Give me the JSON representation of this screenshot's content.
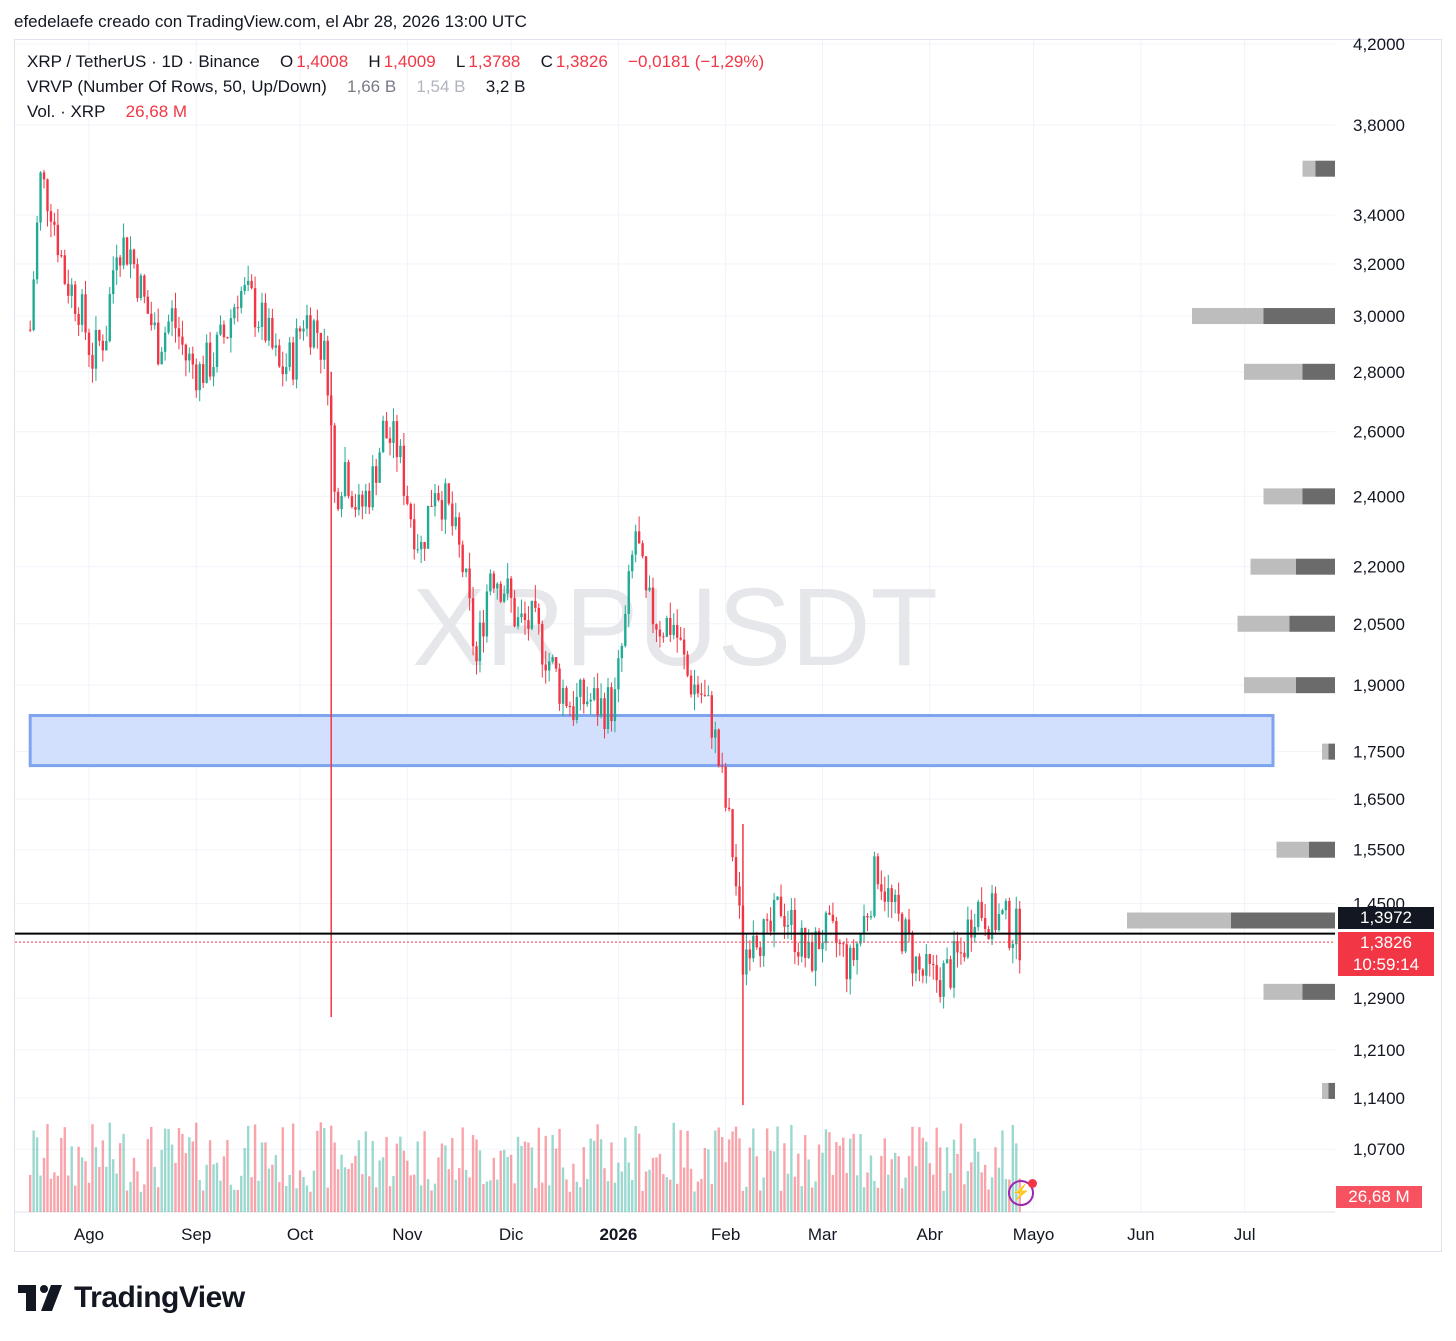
{
  "caption": "efedelaefe creado con TradingView.com, el Abr 28, 2026 13:00 UTC",
  "legend": {
    "symbol": "XRP / TetherUS · 1D · Binance",
    "o_label": "O",
    "o_value": "1,4008",
    "h_label": "H",
    "h_value": "1,4009",
    "l_label": "L",
    "l_value": "1,3788",
    "c_label": "C",
    "c_value": "1,3826",
    "change": "−0,0181 (−1,29%)",
    "vrvp_label": "VRVP (Number Of Rows, 50, Up/Down)",
    "vrvp_up": "1,66 B",
    "vrvp_down": "1,54 B",
    "vrvp_total": "3,2 B",
    "vol_label": "Vol. · XRP",
    "vol_value": "26,68 M"
  },
  "watermark": "XRPUSDT",
  "price_tags": {
    "poc": "1,3972",
    "last": "1,3826",
    "countdown": "10:59:14",
    "volume": "26,68 M"
  },
  "footer": {
    "brand": "TradingView"
  },
  "colors": {
    "up": "#22ab94",
    "down": "#f23645",
    "zone_fill": "#d2e0fd",
    "zone_border": "#7ea4ef",
    "vp_light": "#bdbdbd",
    "vp_dark": "#6b6b6b"
  },
  "chart_data": {
    "type": "candlestick",
    "y_ticks": [
      "4,2000",
      "3,8000",
      "3,4000",
      "3,2000",
      "3,0000",
      "2,8000",
      "2,6000",
      "2,4000",
      "2,2000",
      "2,0500",
      "1,9000",
      "1,7500",
      "1,6500",
      "1,5500",
      "1,4500",
      "1,2900",
      "1,2100",
      "1,1400",
      "1,0700"
    ],
    "x_ticks": [
      "Ago",
      "Sep",
      "Oct",
      "Nov",
      "Dic",
      "2026",
      "Feb",
      "Mar",
      "Abr",
      "Mayo",
      "Jun",
      "Jul"
    ],
    "price_series": [
      {
        "date": "2025-07-15",
        "close": 2.95
      },
      {
        "date": "2025-07-18",
        "close": 3.55
      },
      {
        "date": "2025-07-21",
        "close": 3.45
      },
      {
        "date": "2025-07-25",
        "close": 3.15
      },
      {
        "date": "2025-07-29",
        "close": 3.05
      },
      {
        "date": "2025-08-02",
        "close": 2.85
      },
      {
        "date": "2025-08-06",
        "close": 2.95
      },
      {
        "date": "2025-08-09",
        "close": 3.3
      },
      {
        "date": "2025-08-13",
        "close": 3.25
      },
      {
        "date": "2025-08-17",
        "close": 3.05
      },
      {
        "date": "2025-08-21",
        "close": 2.9
      },
      {
        "date": "2025-08-25",
        "close": 3.0
      },
      {
        "date": "2025-08-29",
        "close": 2.85
      },
      {
        "date": "2025-09-02",
        "close": 2.8
      },
      {
        "date": "2025-09-06",
        "close": 2.85
      },
      {
        "date": "2025-09-10",
        "close": 2.95
      },
      {
        "date": "2025-09-13",
        "close": 3.1
      },
      {
        "date": "2025-09-17",
        "close": 3.05
      },
      {
        "date": "2025-09-21",
        "close": 2.95
      },
      {
        "date": "2025-09-25",
        "close": 2.8
      },
      {
        "date": "2025-09-29",
        "close": 2.85
      },
      {
        "date": "2025-10-02",
        "close": 3.0
      },
      {
        "date": "2025-10-06",
        "close": 2.95
      },
      {
        "date": "2025-10-09",
        "close": 2.8
      },
      {
        "date": "2025-10-11",
        "close": 2.4
      },
      {
        "date": "2025-10-14",
        "close": 2.5
      },
      {
        "date": "2025-10-18",
        "close": 2.35
      },
      {
        "date": "2025-10-22",
        "close": 2.45
      },
      {
        "date": "2025-10-25",
        "close": 2.6
      },
      {
        "date": "2025-10-29",
        "close": 2.55
      },
      {
        "date": "2025-11-02",
        "close": 2.35
      },
      {
        "date": "2025-11-05",
        "close": 2.25
      },
      {
        "date": "2025-11-09",
        "close": 2.45
      },
      {
        "date": "2025-11-13",
        "close": 2.35
      },
      {
        "date": "2025-11-17",
        "close": 2.2
      },
      {
        "date": "2025-11-21",
        "close": 1.95
      },
      {
        "date": "2025-11-25",
        "close": 2.2
      },
      {
        "date": "2025-11-29",
        "close": 2.15
      },
      {
        "date": "2025-12-03",
        "close": 2.05
      },
      {
        "date": "2025-12-07",
        "close": 2.05
      },
      {
        "date": "2025-12-11",
        "close": 1.98
      },
      {
        "date": "2025-12-15",
        "close": 1.9
      },
      {
        "date": "2025-12-19",
        "close": 1.85
      },
      {
        "date": "2025-12-23",
        "close": 1.87
      },
      {
        "date": "2025-12-27",
        "close": 1.85
      },
      {
        "date": "2025-12-31",
        "close": 1.86
      },
      {
        "date": "2026-01-03",
        "close": 2.05
      },
      {
        "date": "2026-01-06",
        "close": 2.3
      },
      {
        "date": "2026-01-09",
        "close": 2.1
      },
      {
        "date": "2026-01-13",
        "close": 2.05
      },
      {
        "date": "2026-01-17",
        "close": 2.05
      },
      {
        "date": "2026-01-21",
        "close": 1.92
      },
      {
        "date": "2026-01-25",
        "close": 1.88
      },
      {
        "date": "2026-01-28",
        "close": 1.82
      },
      {
        "date": "2026-01-31",
        "close": 1.68
      },
      {
        "date": "2026-02-03",
        "close": 1.55
      },
      {
        "date": "2026-02-06",
        "close": 1.35
      },
      {
        "date": "2026-02-09",
        "close": 1.42
      },
      {
        "date": "2026-02-13",
        "close": 1.38
      },
      {
        "date": "2026-02-17",
        "close": 1.45
      },
      {
        "date": "2026-02-21",
        "close": 1.4
      },
      {
        "date": "2026-02-25",
        "close": 1.35
      },
      {
        "date": "2026-03-01",
        "close": 1.4
      },
      {
        "date": "2026-03-05",
        "close": 1.38
      },
      {
        "date": "2026-03-09",
        "close": 1.34
      },
      {
        "date": "2026-03-13",
        "close": 1.42
      },
      {
        "date": "2026-03-17",
        "close": 1.52
      },
      {
        "date": "2026-03-21",
        "close": 1.44
      },
      {
        "date": "2026-03-25",
        "close": 1.39
      },
      {
        "date": "2026-03-29",
        "close": 1.33
      },
      {
        "date": "2026-04-02",
        "close": 1.32
      },
      {
        "date": "2026-04-06",
        "close": 1.33
      },
      {
        "date": "2026-04-10",
        "close": 1.36
      },
      {
        "date": "2026-04-14",
        "close": 1.45
      },
      {
        "date": "2026-04-18",
        "close": 1.43
      },
      {
        "date": "2026-04-22",
        "close": 1.42
      },
      {
        "date": "2026-04-26",
        "close": 1.4
      },
      {
        "date": "2026-04-28",
        "close": 1.3826
      }
    ],
    "last_close": 1.3826,
    "poc_level": 1.3972,
    "zone": {
      "low": 1.72,
      "high": 1.83,
      "from": "2025-07-15",
      "to": "2026-07-01"
    },
    "wicks": [
      {
        "date": "2025-10-10",
        "low": 1.26,
        "high": 2.8
      },
      {
        "date": "2026-02-06",
        "low": 1.13,
        "high": 1.6
      }
    ],
    "volume_profile_levels": [
      {
        "price": 3.6,
        "up": 0.1,
        "down": 0.15
      },
      {
        "price": 3.0,
        "up": 0.55,
        "down": 0.55
      },
      {
        "price": 2.8,
        "up": 0.45,
        "down": 0.25
      },
      {
        "price": 2.4,
        "up": 0.3,
        "down": 0.25
      },
      {
        "price": 2.2,
        "up": 0.35,
        "down": 0.3
      },
      {
        "price": 2.05,
        "up": 0.4,
        "down": 0.35
      },
      {
        "price": 1.9,
        "up": 0.4,
        "down": 0.3
      },
      {
        "price": 1.75,
        "up": 0.05,
        "down": 0.05
      },
      {
        "price": 1.55,
        "up": 0.25,
        "down": 0.2
      },
      {
        "price": 1.42,
        "up": 0.8,
        "down": 0.8
      },
      {
        "price": 1.3,
        "up": 0.3,
        "down": 0.25
      },
      {
        "price": 1.15,
        "up": 0.05,
        "down": 0.05
      }
    ]
  }
}
